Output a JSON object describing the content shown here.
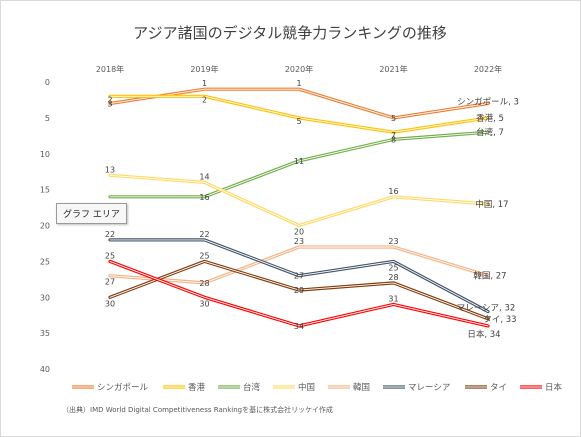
{
  "chart_data": {
    "type": "line",
    "title": "アジア諸国のデジタル競争力ランキングの推移",
    "categories": [
      "2018年",
      "2019年",
      "2020年",
      "2021年",
      "2022年"
    ],
    "y_axis": {
      "inverted": true,
      "ylim": [
        0,
        40
      ],
      "ticks": [
        0,
        5,
        10,
        15,
        20,
        25,
        30,
        35,
        40
      ],
      "tick_labels": [
        "0",
        "5",
        "10",
        "15",
        "20",
        "25",
        "30",
        "35",
        "40"
      ]
    },
    "x_axis_position": "top",
    "grid": false,
    "legend_position": "bottom",
    "series": [
      {
        "name": "シンガポール",
        "values": [
          3,
          1,
          1,
          5,
          3
        ],
        "labels": [
          "3",
          "1",
          "1",
          "5",
          "シンガポール, 3"
        ],
        "color": "#ED7D31"
      },
      {
        "name": "香港",
        "values": [
          2,
          2,
          5,
          7,
          5
        ],
        "labels": [
          "2",
          "2",
          "5",
          "7",
          "香港, 5"
        ],
        "color": "#FFC000"
      },
      {
        "name": "台湾",
        "values": [
          16,
          16,
          11,
          8,
          7
        ],
        "labels": [
          "",
          "16",
          "11",
          "8",
          "台湾, 7"
        ],
        "color": "#70AD47"
      },
      {
        "name": "中国",
        "values": [
          13,
          14,
          20,
          16,
          17
        ],
        "labels": [
          "13",
          "14",
          "20",
          "16",
          "中国, 17"
        ],
        "color": "#FFD966"
      },
      {
        "name": "韓国",
        "values": [
          27,
          28,
          23,
          23,
          27
        ],
        "labels": [
          "27",
          "28",
          "23",
          "23",
          "韓国, 27"
        ],
        "color": "#F4B183"
      },
      {
        "name": "マレーシア",
        "values": [
          22,
          22,
          27,
          25,
          32
        ],
        "labels": [
          "22",
          "22",
          "27",
          "25",
          "マレーシア, 32"
        ],
        "color": "#44546A"
      },
      {
        "name": "タイ",
        "values": [
          30,
          25,
          29,
          28,
          33
        ],
        "labels": [
          "30",
          "25",
          "29",
          "28",
          "タイ, 33"
        ],
        "color": "#843C0C"
      },
      {
        "name": "日本",
        "values": [
          25,
          30,
          34,
          31,
          34
        ],
        "labels": [
          "25",
          "30",
          "34",
          "31",
          "日本, 34"
        ],
        "color": "#FF0000",
        "label_color": "#FF0000"
      }
    ],
    "source_note": "（出典）IMD World Digital Competitiveness Rankingを基に株式会社リッケイ作成"
  },
  "tooltip": {
    "text": "グラフ エリア"
  }
}
